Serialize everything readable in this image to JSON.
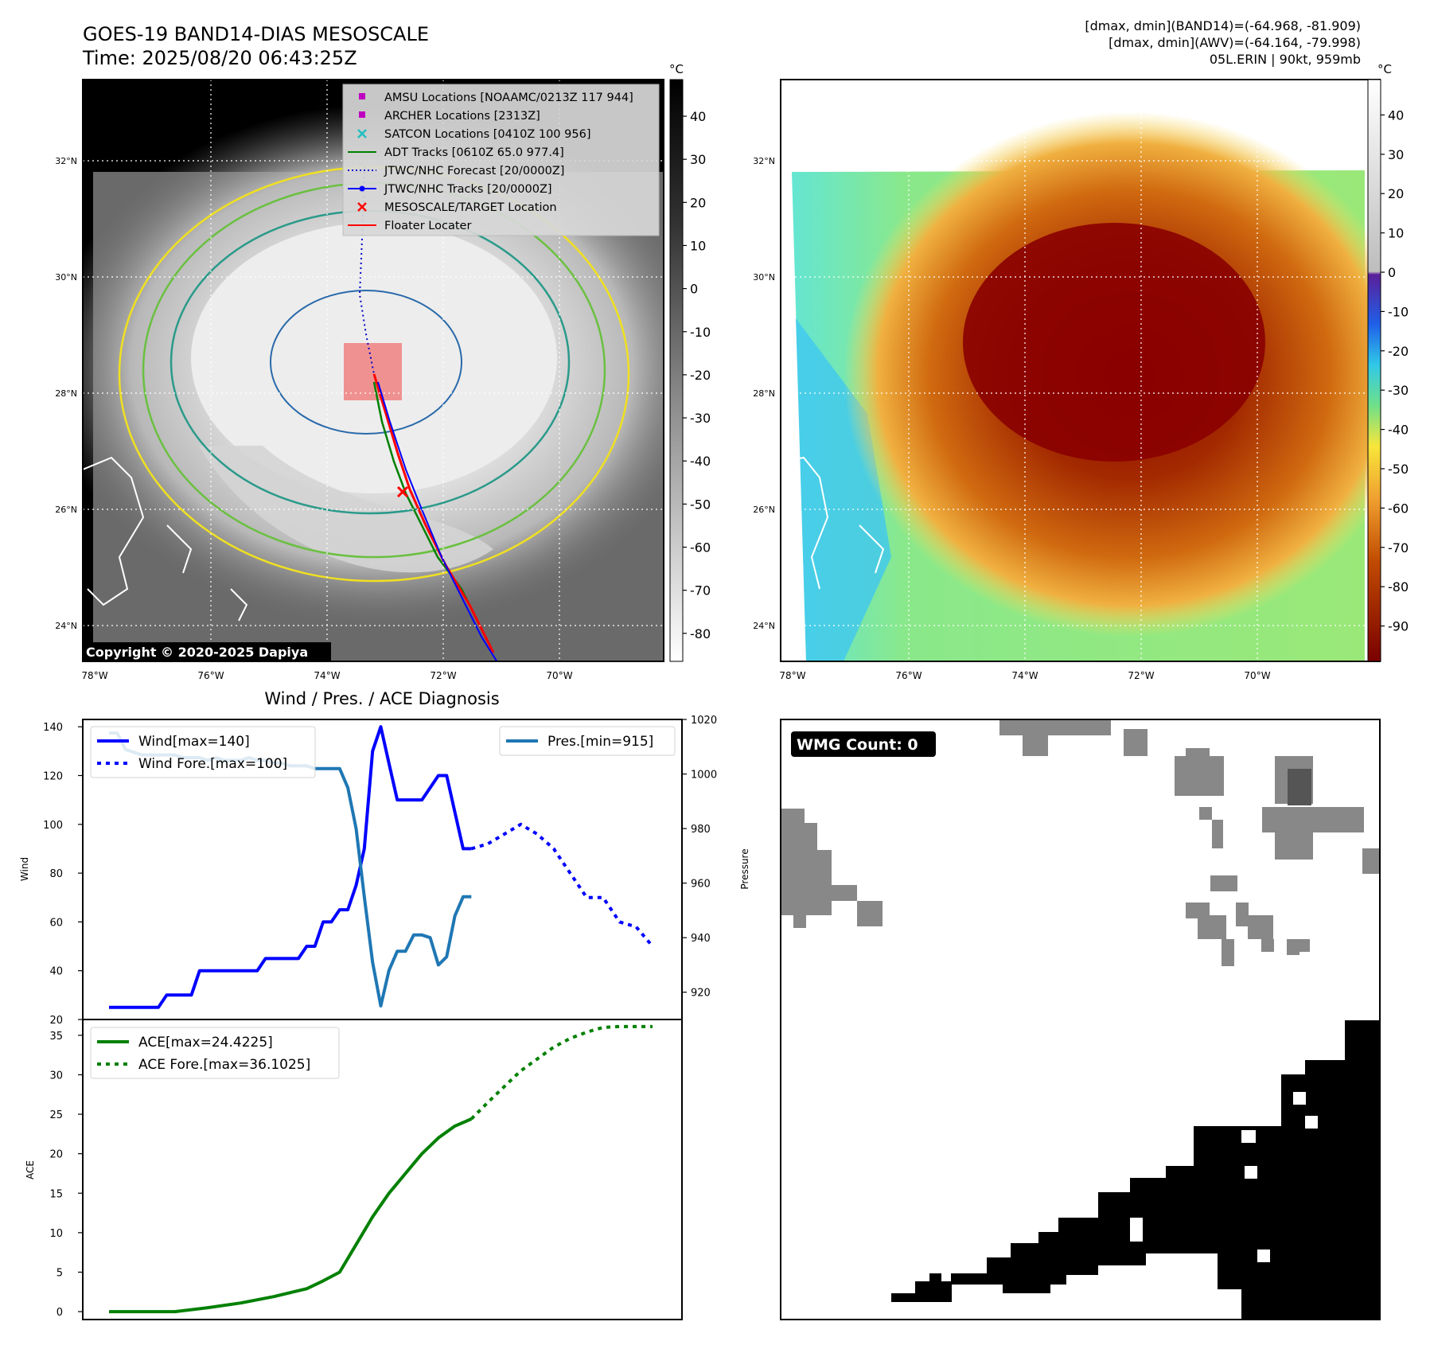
{
  "header": {
    "title_line1": "GOES-19 BAND14-DIAS MESOSCALE",
    "title_line2": "Time: 2025/08/20 06:43:25Z",
    "info_line1": "[dmax, dmin](BAND14)=(-64.968, -81.909)",
    "info_line2": "[dmax, dmin](AWV)=(-64.164, -79.998)",
    "info_line3": "05L.ERIN | 90kt, 959mb"
  },
  "map_axes": {
    "lat_labels": [
      "32°N",
      "30°N",
      "28°N",
      "26°N",
      "24°N"
    ],
    "lon_labels": [
      "78°W",
      "76°W",
      "74°W",
      "72°W",
      "70°W"
    ],
    "unit_label": "°C"
  },
  "ir_panel": {
    "colorbar_ticks": [
      40,
      30,
      20,
      10,
      0,
      -10,
      -20,
      -30,
      -40,
      -50,
      -60,
      -70,
      -80
    ],
    "copyright": "Copyright © 2020-2025 Dapiya",
    "legend": [
      {
        "label": "AMSU Locations [NOAAMC/0213Z 117 944]",
        "color": "#c000c0",
        "marker": "square"
      },
      {
        "label": "ARCHER Locations [2313Z]",
        "color": "#c000c0",
        "marker": "square"
      },
      {
        "label": "SATCON Locations [0410Z 100 956]",
        "color": "#20c0c0",
        "marker": "x"
      },
      {
        "label": "ADT Tracks [0610Z 65.0 977.4]",
        "color": "#008000",
        "marker": "line"
      },
      {
        "label": "JTWC/NHC Forecast [20/0000Z]",
        "color": "#0000cc",
        "marker": "dotted"
      },
      {
        "label": "JTWC/NHC Tracks [20/0000Z]",
        "color": "#0000ff",
        "marker": "line-dot"
      },
      {
        "label": "MESOSCALE/TARGET Location",
        "color": "#ff0000",
        "marker": "x"
      },
      {
        "label": "Floater Locater",
        "color": "#ff0000",
        "marker": "line"
      }
    ]
  },
  "wv_panel": {
    "colorbar_ticks": [
      40,
      30,
      20,
      10,
      0,
      -10,
      -20,
      -30,
      -40,
      -50,
      -60,
      -70,
      -80,
      -90
    ]
  },
  "wmg_panel": {
    "label": "WMG Count: 0"
  },
  "chart_data": [
    {
      "type": "line",
      "title": "Wind / Pres. / ACE Diagnosis",
      "ylabel": "Wind",
      "ylabel_right": "Pressure",
      "ylim": [
        20,
        143
      ],
      "ylim_right": [
        910,
        1020
      ],
      "y_ticks": [
        20,
        40,
        60,
        80,
        100,
        120,
        140
      ],
      "y_ticks_right": [
        920,
        940,
        960,
        980,
        1000,
        1020
      ],
      "x": [
        0,
        1,
        2,
        3,
        4,
        5,
        6,
        7,
        8,
        9,
        10,
        11,
        12,
        13,
        14,
        15,
        16,
        17,
        18,
        19,
        20,
        21,
        22,
        23,
        24,
        25,
        26,
        27,
        28,
        29,
        30,
        31,
        32,
        33,
        34,
        35,
        36,
        37,
        38,
        39,
        40,
        41,
        42,
        43,
        44,
        45,
        46,
        47,
        48,
        49,
        50,
        51,
        52,
        53,
        54,
        55,
        56,
        57,
        58,
        59,
        60,
        61,
        62,
        63,
        64,
        65,
        66
      ],
      "series": [
        {
          "name": "Wind[max=140]",
          "color": "#0000ff",
          "style": "solid",
          "x": [
            0,
            1,
            2,
            3,
            4,
            5,
            6,
            7,
            8,
            9,
            10,
            11,
            12,
            13,
            14,
            15,
            16,
            17,
            18,
            19,
            20,
            21,
            22,
            23,
            24,
            25,
            26,
            27,
            28,
            29,
            30,
            31,
            32,
            33,
            34,
            35,
            36,
            37,
            38,
            39,
            40,
            41,
            42,
            43,
            44
          ],
          "values": [
            25,
            25,
            25,
            25,
            25,
            25,
            25,
            30,
            30,
            30,
            30,
            40,
            40,
            40,
            40,
            40,
            40,
            40,
            40,
            45,
            45,
            45,
            45,
            45,
            50,
            50,
            60,
            60,
            65,
            65,
            75,
            90,
            130,
            140,
            125,
            110,
            110,
            110,
            110,
            115,
            120,
            120,
            105,
            90,
            90
          ]
        },
        {
          "name": "Wind Fore.[max=100]",
          "color": "#0000ff",
          "style": "dotted",
          "x": [
            44,
            46,
            48,
            50,
            52,
            54,
            56,
            58,
            60,
            62,
            64,
            66
          ],
          "values": [
            90,
            92,
            96,
            100,
            96,
            90,
            80,
            70,
            70,
            60,
            58,
            50
          ]
        },
        {
          "name": "Pres.[min=915]",
          "color": "#1f77b4",
          "style": "solid",
          "axis": "right",
          "x": [
            0,
            1,
            2,
            3,
            4,
            5,
            6,
            7,
            8,
            9,
            10,
            11,
            12,
            13,
            14,
            15,
            16,
            17,
            18,
            19,
            20,
            21,
            22,
            23,
            24,
            25,
            26,
            27,
            28,
            29,
            30,
            31,
            32,
            33,
            34,
            35,
            36,
            37,
            38,
            39,
            40,
            41,
            42,
            43,
            44
          ],
          "values": [
            1015,
            1015,
            1009,
            1008,
            1007,
            1007,
            1007,
            1007,
            1007,
            1006,
            1006,
            1006,
            1005,
            1006,
            1005,
            1005,
            1005,
            1006,
            1005,
            1005,
            1004,
            1004,
            1003,
            1003,
            1003,
            1002,
            1002,
            1002,
            1002,
            995,
            980,
            955,
            931,
            915,
            928,
            935,
            935,
            941,
            941,
            940,
            930,
            933,
            948,
            955,
            955
          ]
        }
      ],
      "legend": [
        {
          "name": "Wind[max=140]",
          "color": "#0000ff",
          "style": "solid"
        },
        {
          "name": "Wind Fore.[max=100]",
          "color": "#0000ff",
          "style": "dotted"
        },
        {
          "name": "Pres.[min=915]",
          "color": "#1f77b4",
          "style": "solid"
        }
      ]
    },
    {
      "type": "line",
      "ylabel": "ACE",
      "ylim": [
        -1,
        37
      ],
      "y_ticks": [
        0,
        5,
        10,
        15,
        20,
        25,
        30,
        35
      ],
      "series": [
        {
          "name": "ACE[max=24.4225]",
          "color": "#008000",
          "style": "solid",
          "x": [
            0,
            4,
            8,
            12,
            16,
            20,
            24,
            26,
            28,
            30,
            32,
            34,
            36,
            38,
            40,
            42,
            44
          ],
          "values": [
            0,
            0,
            0,
            0.5,
            1.1,
            1.9,
            2.9,
            3.9,
            5,
            8.5,
            12,
            15,
            17.5,
            20,
            22,
            23.5,
            24.4
          ]
        },
        {
          "name": "ACE Fore.[max=36.1025]",
          "color": "#008000",
          "style": "dotted",
          "x": [
            44,
            46,
            48,
            50,
            52,
            54,
            56,
            58,
            60,
            62,
            64,
            66
          ],
          "values": [
            24.4,
            26.5,
            28.5,
            30.5,
            32,
            33.5,
            34.6,
            35.4,
            36,
            36.1,
            36.1,
            36.1
          ]
        }
      ],
      "legend": [
        {
          "name": "ACE[max=24.4225]",
          "color": "#008000",
          "style": "solid"
        },
        {
          "name": "ACE Fore.[max=36.1025]",
          "color": "#008000",
          "style": "dotted"
        }
      ]
    }
  ]
}
